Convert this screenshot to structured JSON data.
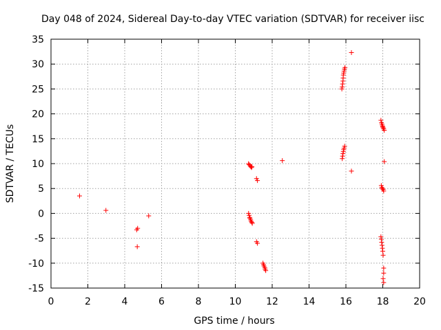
{
  "chart_data": {
    "type": "scatter",
    "title": "Day 048 of 2024, Sidereal Day-to-day VTEC variation (SDTVAR) for receiver iisc",
    "xlabel": "GPS time / hours",
    "ylabel": "SDTVAR / TECUs",
    "xlim": [
      0,
      20
    ],
    "ylim": [
      -15,
      35
    ],
    "xticks": [
      0,
      2,
      4,
      6,
      8,
      10,
      12,
      14,
      16,
      18,
      20
    ],
    "yticks": [
      -15,
      -10,
      -5,
      0,
      5,
      10,
      15,
      20,
      25,
      30,
      35
    ],
    "grid": true,
    "marker": "+",
    "colors": {
      "points": "#ff0000",
      "axes": "#000000",
      "grid": "#a0a0a0"
    },
    "series": [
      {
        "name": "SDTVAR",
        "points": [
          [
            1.55,
            3.5
          ],
          [
            2.98,
            0.6
          ],
          [
            4.65,
            -3.3
          ],
          [
            4.7,
            -3.0
          ],
          [
            4.68,
            -6.7
          ],
          [
            5.3,
            -0.5
          ],
          [
            10.72,
            10.0
          ],
          [
            10.75,
            9.8
          ],
          [
            10.8,
            9.6
          ],
          [
            10.84,
            9.4
          ],
          [
            10.88,
            9.2
          ],
          [
            10.9,
            9.4
          ],
          [
            10.72,
            0.0
          ],
          [
            10.75,
            -0.4
          ],
          [
            10.78,
            -0.8
          ],
          [
            10.8,
            -1.0
          ],
          [
            10.83,
            -1.3
          ],
          [
            10.86,
            -1.6
          ],
          [
            10.9,
            -1.8
          ],
          [
            10.92,
            -2.0
          ],
          [
            11.15,
            7.0
          ],
          [
            11.2,
            6.6
          ],
          [
            11.15,
            -5.7
          ],
          [
            11.2,
            -6.0
          ],
          [
            11.5,
            -10.0
          ],
          [
            11.53,
            -10.3
          ],
          [
            11.56,
            -10.6
          ],
          [
            11.6,
            -10.9
          ],
          [
            11.62,
            -11.2
          ],
          [
            11.65,
            -11.5
          ],
          [
            12.55,
            10.6
          ],
          [
            15.78,
            25.0
          ],
          [
            15.8,
            25.4
          ],
          [
            15.82,
            26.0
          ],
          [
            15.84,
            26.6
          ],
          [
            15.85,
            27.2
          ],
          [
            15.86,
            27.8
          ],
          [
            15.88,
            28.2
          ],
          [
            15.9,
            28.6
          ],
          [
            15.92,
            29.0
          ],
          [
            15.95,
            29.3
          ],
          [
            15.8,
            11.0
          ],
          [
            15.82,
            11.5
          ],
          [
            15.84,
            12.0
          ],
          [
            15.86,
            12.4
          ],
          [
            15.88,
            12.8
          ],
          [
            15.9,
            13.1
          ],
          [
            15.93,
            13.5
          ],
          [
            16.3,
            32.3
          ],
          [
            16.3,
            8.5
          ],
          [
            17.9,
            18.7
          ],
          [
            17.93,
            18.2
          ],
          [
            17.96,
            17.9
          ],
          [
            17.98,
            17.6
          ],
          [
            18.0,
            17.4
          ],
          [
            18.02,
            17.2
          ],
          [
            18.05,
            17.0
          ],
          [
            18.08,
            16.7
          ],
          [
            17.92,
            5.6
          ],
          [
            17.95,
            5.2
          ],
          [
            17.98,
            5.0
          ],
          [
            18.02,
            4.8
          ],
          [
            18.05,
            4.5
          ],
          [
            18.08,
            10.4
          ],
          [
            17.9,
            -4.7
          ],
          [
            17.92,
            -5.2
          ],
          [
            17.94,
            -5.8
          ],
          [
            17.96,
            -6.4
          ],
          [
            17.98,
            -7.0
          ],
          [
            18.0,
            -7.6
          ],
          [
            18.02,
            -8.4
          ],
          [
            18.05,
            -11.0
          ],
          [
            18.05,
            -12.0
          ],
          [
            18.02,
            -13.1
          ],
          [
            18.05,
            -13.9
          ]
        ]
      }
    ]
  }
}
